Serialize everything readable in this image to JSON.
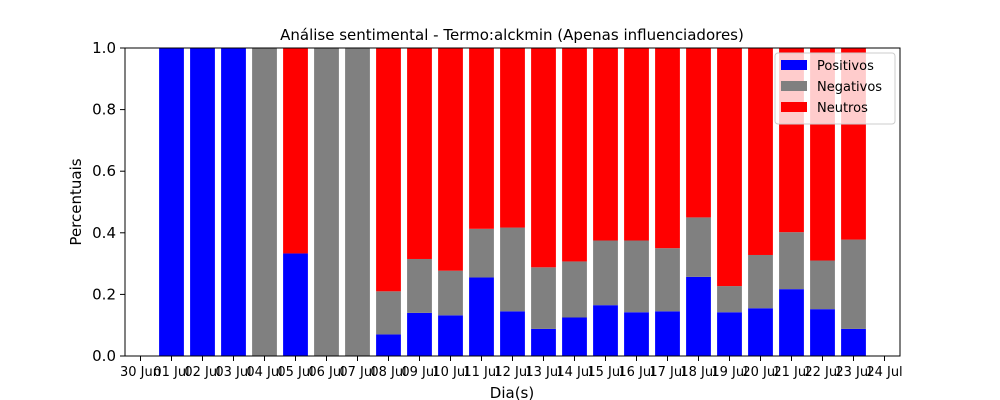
{
  "chart_data": {
    "type": "bar",
    "stacked": true,
    "title": "Análise sentimental - Termo:alckmin (Apenas influenciadores)",
    "xlabel": "Dia(s)",
    "ylabel": "Percentuais",
    "ylim": [
      0,
      1.0
    ],
    "yticks": [
      "0.0",
      "0.2",
      "0.4",
      "0.6",
      "0.8",
      "1.0"
    ],
    "xlim": [
      "30 Jun",
      "24 Jul"
    ],
    "xtick_labels": [
      "30 Jun",
      "01 Jul",
      "02 Jul",
      "03 Jul",
      "04 Jul",
      "05 Jul",
      "06 Jul",
      "07 Jul",
      "08 Jul",
      "09 Jul",
      "10 Jul",
      "11 Jul",
      "12 Jul",
      "13 Jul",
      "14 Jul",
      "15 Jul",
      "16 Jul",
      "17 Jul",
      "18 Jul",
      "19 Jul",
      "20 Jul",
      "21 Jul",
      "22 Jul",
      "23 Jul",
      "24 Jul"
    ],
    "categories": [
      "01 Jul",
      "02 Jul",
      "03 Jul",
      "04 Jul",
      "05 Jul",
      "06 Jul",
      "07 Jul",
      "08 Jul",
      "09 Jul",
      "10 Jul",
      "11 Jul",
      "12 Jul",
      "13 Jul",
      "14 Jul",
      "15 Jul",
      "16 Jul",
      "17 Jul",
      "18 Jul",
      "19 Jul",
      "20 Jul",
      "21 Jul",
      "22 Jul",
      "23 Jul"
    ],
    "series": [
      {
        "name": "Positivos",
        "color": "#0000ff",
        "values": [
          1.0,
          1.0,
          1.0,
          0.0,
          0.333,
          0.0,
          0.0,
          0.07,
          0.14,
          0.132,
          0.255,
          0.145,
          0.088,
          0.125,
          0.165,
          0.142,
          0.145,
          0.257,
          0.142,
          0.155,
          0.217,
          0.152,
          0.088
        ]
      },
      {
        "name": "Negativos",
        "color": "#808080",
        "values": [
          0.0,
          0.0,
          0.0,
          1.0,
          0.0,
          1.0,
          1.0,
          0.14,
          0.175,
          0.145,
          0.158,
          0.272,
          0.2,
          0.182,
          0.21,
          0.233,
          0.205,
          0.193,
          0.085,
          0.173,
          0.185,
          0.158,
          0.29
        ]
      },
      {
        "name": "Neutros",
        "color": "#ff0000",
        "values": [
          0.0,
          0.0,
          0.0,
          0.0,
          0.667,
          0.0,
          0.0,
          0.79,
          0.685,
          0.723,
          0.587,
          0.583,
          0.712,
          0.693,
          0.625,
          0.625,
          0.65,
          0.55,
          0.773,
          0.672,
          0.598,
          0.69,
          0.622
        ]
      }
    ],
    "legend_position": "top-right",
    "grid": false
  }
}
